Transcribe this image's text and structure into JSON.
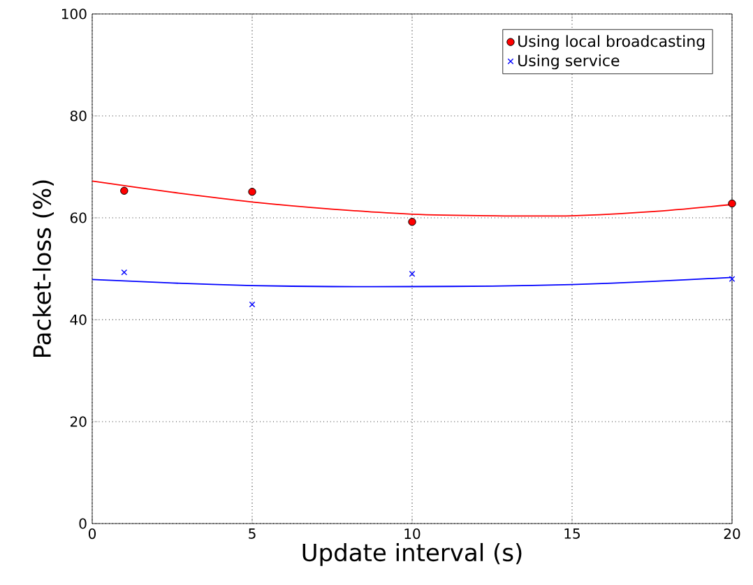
{
  "chart_data": {
    "type": "scatter",
    "xlabel": "Update interval (s)",
    "ylabel": "Packet-loss (%)",
    "x": [
      1,
      5,
      10,
      20
    ],
    "series": [
      {
        "name": "Using local broadcasting",
        "color": "#ff0000",
        "marker": "circle",
        "values": [
          65.3,
          65.1,
          59.2,
          62.8
        ]
      },
      {
        "name": "Using service",
        "color": "#0000ff",
        "marker": "cross",
        "values": [
          49.3,
          43.0,
          49.0,
          48.0
        ]
      },
      {
        "type": "line",
        "color": "#ff0000",
        "x": [
          0,
          2.5,
          5,
          7.5,
          10,
          12.5,
          15,
          17.5,
          20
        ],
        "values": [
          67.2,
          65.0,
          63.1,
          61.7,
          60.7,
          60.4,
          60.4,
          61.2,
          62.6
        ]
      },
      {
        "type": "line",
        "color": "#0000ff",
        "x": [
          0,
          2.5,
          5,
          7.5,
          10,
          12.5,
          15,
          17.5,
          20
        ],
        "values": [
          47.9,
          47.2,
          46.7,
          46.5,
          46.5,
          46.6,
          46.9,
          47.5,
          48.3
        ]
      }
    ],
    "xlim": [
      0,
      20
    ],
    "xticks": [
      0,
      5,
      10,
      15,
      20
    ],
    "ylim": [
      0,
      100
    ],
    "yticks": [
      0,
      20,
      40,
      60,
      80,
      100
    ],
    "grid": true,
    "legend": "top right"
  }
}
